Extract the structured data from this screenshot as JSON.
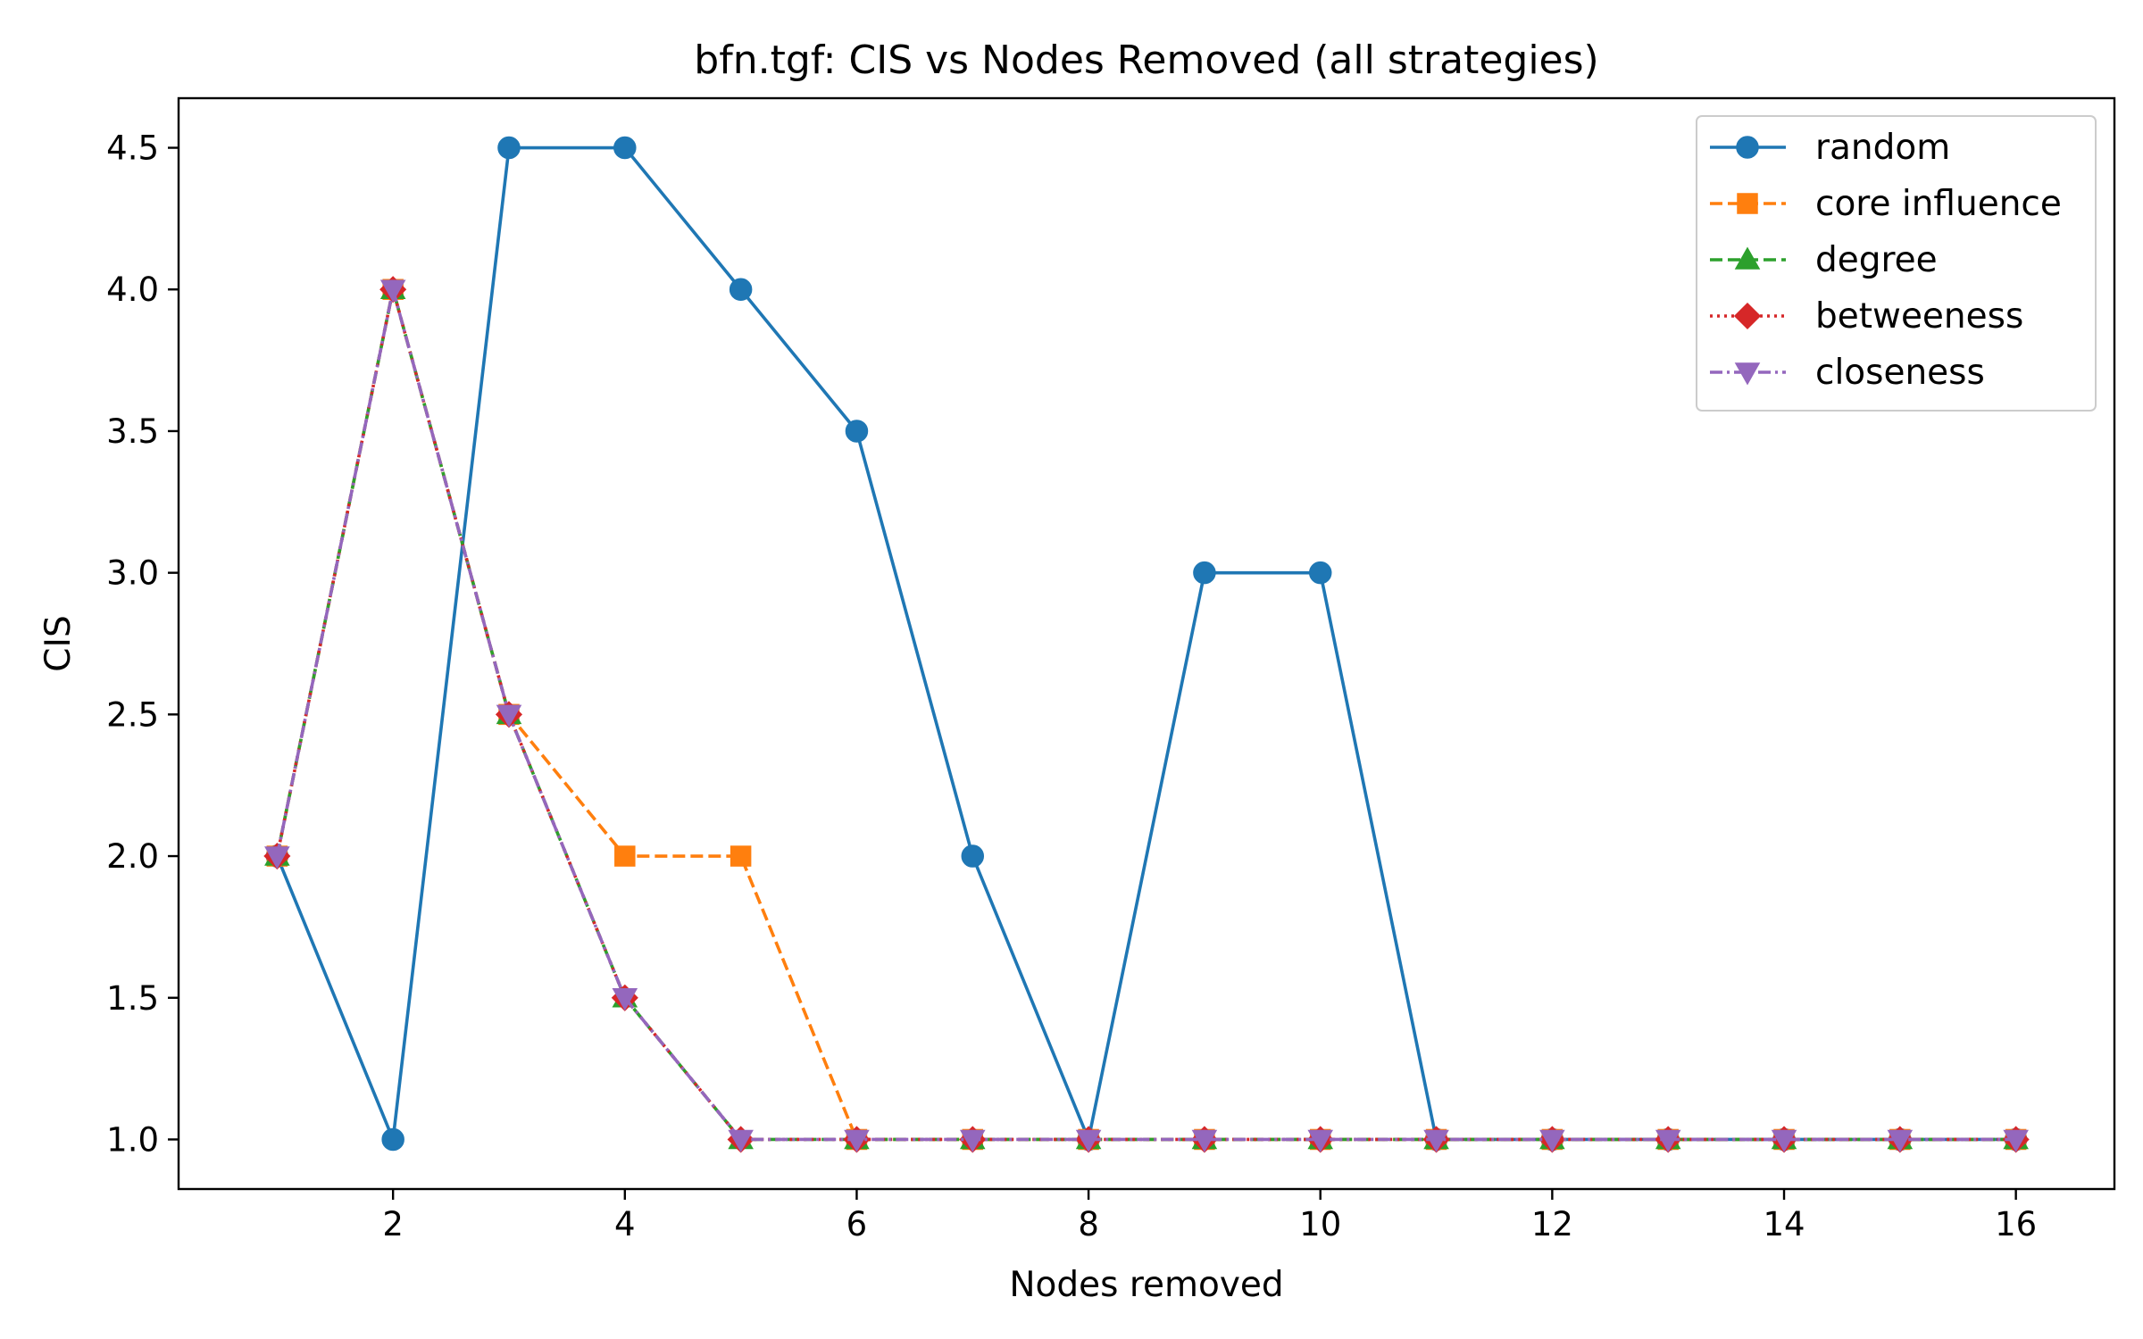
{
  "chart_data": {
    "type": "line",
    "title": "bfn.tgf: CIS vs Nodes Removed (all strategies)",
    "xlabel": "Nodes removed",
    "ylabel": "CIS",
    "xlim": [
      0.15,
      16.85
    ],
    "ylim": [
      0.825,
      4.675
    ],
    "xticks": [
      2,
      4,
      6,
      8,
      10,
      12,
      14,
      16
    ],
    "yticks": [
      1.0,
      1.5,
      2.0,
      2.5,
      3.0,
      3.5,
      4.0,
      4.5
    ],
    "xtick_labels": [
      "2",
      "4",
      "6",
      "8",
      "10",
      "12",
      "14",
      "16"
    ],
    "ytick_labels": [
      "1.0",
      "1.5",
      "2.0",
      "2.5",
      "3.0",
      "3.5",
      "4.0",
      "4.5"
    ],
    "grid": false,
    "legend_position": "top-right",
    "x": [
      1,
      2,
      3,
      4,
      5,
      6,
      7,
      8,
      9,
      10,
      11,
      12,
      13,
      14,
      15,
      16
    ],
    "series": [
      {
        "name": "random",
        "color": "#1f77b4",
        "line_style": "solid",
        "marker": "circle",
        "values": [
          2.0,
          1.0,
          4.5,
          4.5,
          4.0,
          3.5,
          2.0,
          1.0,
          3.0,
          3.0,
          1.0,
          1.0,
          1.0,
          1.0,
          1.0,
          1.0
        ]
      },
      {
        "name": "core influence",
        "color": "#ff7f0e",
        "line_style": "dashed",
        "marker": "square",
        "values": [
          2.0,
          4.0,
          2.5,
          2.0,
          2.0,
          1.0,
          1.0,
          1.0,
          1.0,
          1.0,
          1.0,
          1.0,
          1.0,
          1.0,
          1.0,
          1.0
        ]
      },
      {
        "name": "degree",
        "color": "#2ca02c",
        "line_style": "dashed",
        "marker": "triangle-up",
        "values": [
          2.0,
          4.0,
          2.5,
          1.5,
          1.0,
          1.0,
          1.0,
          1.0,
          1.0,
          1.0,
          1.0,
          1.0,
          1.0,
          1.0,
          1.0,
          1.0
        ]
      },
      {
        "name": "betweeness",
        "color": "#d62728",
        "line_style": "dotted",
        "marker": "diamond",
        "values": [
          2.0,
          4.0,
          2.5,
          1.5,
          1.0,
          1.0,
          1.0,
          1.0,
          1.0,
          1.0,
          1.0,
          1.0,
          1.0,
          1.0,
          1.0,
          1.0
        ]
      },
      {
        "name": "closeness",
        "color": "#9467bd",
        "line_style": "dashdot",
        "marker": "triangle-down",
        "values": [
          2.0,
          4.0,
          2.5,
          1.5,
          1.0,
          1.0,
          1.0,
          1.0,
          1.0,
          1.0,
          1.0,
          1.0,
          1.0,
          1.0,
          1.0,
          1.0
        ]
      }
    ]
  }
}
